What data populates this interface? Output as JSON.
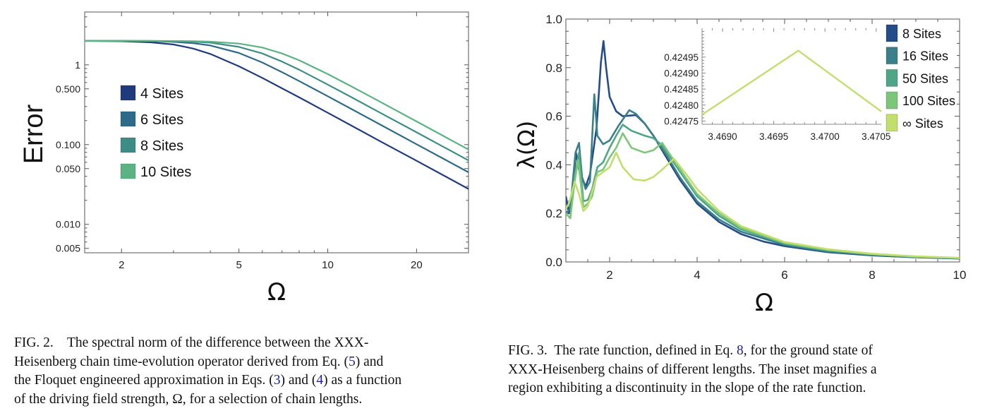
{
  "figures": [
    {
      "caption_lines": [
        [
          "FIG. 2.    The spectral norm of the difference between the XXX-"
        ],
        [
          "Heisenberg chain time-evolution operator derived from Eq. (",
          {
            "ref": "5"
          },
          ") and"
        ],
        [
          "the Floquet engineered approximation in Eqs. (",
          {
            "ref": "3"
          },
          ") and (",
          {
            "ref": "4"
          },
          ") as a function"
        ],
        [
          "of the driving field strength, Ω, for a selection of chain lengths."
        ]
      ]
    },
    {
      "caption_lines": [
        [
          "FIG. 3.  The rate function, defined in Eq. ",
          {
            "ref": "8"
          },
          ", for the ground state of"
        ],
        [
          "XXX-Heisenberg chains of different lengths. The inset magnifies a"
        ],
        [
          "region exhibiting a discontinuity in the slope of the rate function."
        ]
      ]
    }
  ],
  "chart_data": [
    {
      "type": "line",
      "xlabel": "Ω",
      "ylabel": "Error",
      "xscale": "log",
      "yscale": "log",
      "xlim": [
        1.5,
        30
      ],
      "ylim": [
        0.0044,
        4.6
      ],
      "xticks": [
        {
          "v": 2,
          "label": "2"
        },
        {
          "v": 5,
          "label": "5"
        },
        {
          "v": 10,
          "label": "10"
        },
        {
          "v": 20,
          "label": "20"
        }
      ],
      "yticks": [
        {
          "v": 1,
          "label": "1"
        },
        {
          "v": 0.5,
          "label": "0.500"
        },
        {
          "v": 0.1,
          "label": "0.100"
        },
        {
          "v": 0.05,
          "label": "0.050"
        },
        {
          "v": 0.01,
          "label": "0.010"
        },
        {
          "v": 0.005,
          "label": "0.005"
        }
      ],
      "grid": false,
      "legend_position": "left-middle",
      "x": [
        1.5,
        2,
        2.5,
        3,
        3.5,
        4,
        5,
        6,
        7,
        8,
        10,
        12,
        15,
        20,
        25,
        30
      ],
      "series": [
        {
          "name": "4 Sites",
          "color": "#1f3b7e",
          "values": [
            1.996,
            1.979,
            1.92,
            1.8,
            1.6,
            1.37,
            0.96,
            0.686,
            0.508,
            0.391,
            0.251,
            0.174,
            0.111,
            0.0627,
            0.0401,
            0.0278
          ]
        },
        {
          "name": "6 Sites",
          "color": "#2d6a8a",
          "values": [
            2.0,
            1.997,
            1.99,
            1.94,
            1.87,
            1.75,
            1.41,
            1.07,
            0.81,
            0.626,
            0.404,
            0.281,
            0.18,
            0.101,
            0.0648,
            0.045
          ]
        },
        {
          "name": "8 Sites",
          "color": "#3d8d86",
          "values": [
            2.0,
            2.0,
            1.995,
            1.98,
            1.95,
            1.9,
            1.68,
            1.39,
            1.1,
            0.87,
            0.566,
            0.395,
            0.253,
            0.1425,
            0.0912,
            0.0633
          ]
        },
        {
          "name": "10 Sites",
          "color": "#5bb283",
          "values": [
            2.0,
            2.0,
            2.0,
            1.99,
            1.98,
            1.955,
            1.85,
            1.65,
            1.39,
            1.14,
            0.766,
            0.54,
            0.347,
            0.195,
            0.1248,
            0.0867
          ]
        }
      ]
    },
    {
      "type": "line",
      "xlabel": "Ω",
      "ylabel": "λ(Ω)",
      "xlim": [
        1,
        10
      ],
      "ylim": [
        0,
        1
      ],
      "xticks": [
        {
          "v": 2,
          "label": "2"
        },
        {
          "v": 4,
          "label": "4"
        },
        {
          "v": 6,
          "label": "6"
        },
        {
          "v": 8,
          "label": "8"
        },
        {
          "v": 10,
          "label": "10"
        }
      ],
      "yticks": [
        {
          "v": 0,
          "label": "0.0"
        },
        {
          "v": 0.2,
          "label": "0.2"
        },
        {
          "v": 0.4,
          "label": "0.4"
        },
        {
          "v": 0.6,
          "label": "0.6"
        },
        {
          "v": 0.8,
          "label": "0.8"
        },
        {
          "v": 1.0,
          "label": "1.0"
        }
      ],
      "grid": false,
      "legend_position": "top-right",
      "series": [
        {
          "name": "8 Sites",
          "color": "#234c88",
          "points": [
            [
              1,
              0.27
            ],
            [
              1.07,
              0.2
            ],
            [
              1.15,
              0.3
            ],
            [
              1.23,
              0.45
            ],
            [
              1.3,
              0.38
            ],
            [
              1.45,
              0.31
            ],
            [
              1.55,
              0.36
            ],
            [
              1.7,
              0.55
            ],
            [
              1.8,
              0.82
            ],
            [
              1.86,
              0.91
            ],
            [
              1.92,
              0.8
            ],
            [
              2.0,
              0.68
            ],
            [
              2.15,
              0.62
            ],
            [
              2.3,
              0.6
            ],
            [
              2.6,
              0.605
            ],
            [
              2.8,
              0.57
            ],
            [
              3.0,
              0.52
            ],
            [
              3.3,
              0.43
            ],
            [
              3.6,
              0.34
            ],
            [
              4.0,
              0.24
            ],
            [
              4.5,
              0.165
            ],
            [
              5,
              0.115
            ],
            [
              5.5,
              0.085
            ],
            [
              6,
              0.065
            ],
            [
              7,
              0.04
            ],
            [
              8,
              0.027
            ],
            [
              9,
              0.019
            ],
            [
              10,
              0.014
            ]
          ]
        },
        {
          "name": "16 Sites",
          "color": "#3a8089",
          "points": [
            [
              1,
              0.2
            ],
            [
              1.1,
              0.22
            ],
            [
              1.22,
              0.45
            ],
            [
              1.3,
              0.49
            ],
            [
              1.37,
              0.35
            ],
            [
              1.45,
              0.3
            ],
            [
              1.55,
              0.33
            ],
            [
              1.65,
              0.69
            ],
            [
              1.72,
              0.52
            ],
            [
              1.85,
              0.485
            ],
            [
              2.0,
              0.5
            ],
            [
              2.2,
              0.56
            ],
            [
              2.45,
              0.625
            ],
            [
              2.6,
              0.61
            ],
            [
              2.8,
              0.57
            ],
            [
              3.0,
              0.52
            ],
            [
              3.3,
              0.44
            ],
            [
              3.6,
              0.35
            ],
            [
              4,
              0.25
            ],
            [
              4.5,
              0.175
            ],
            [
              5,
              0.125
            ],
            [
              6,
              0.07
            ],
            [
              7,
              0.043
            ],
            [
              8,
              0.029
            ],
            [
              9,
              0.02
            ],
            [
              10,
              0.015
            ]
          ]
        },
        {
          "name": "50 Sites",
          "color": "#4ea686",
          "points": [
            [
              1,
              0.2
            ],
            [
              1.1,
              0.18
            ],
            [
              1.2,
              0.35
            ],
            [
              1.3,
              0.45
            ],
            [
              1.4,
              0.25
            ],
            [
              1.5,
              0.255
            ],
            [
              1.6,
              0.3
            ],
            [
              1.72,
              0.39
            ],
            [
              1.85,
              0.41
            ],
            [
              2.0,
              0.47
            ],
            [
              2.15,
              0.52
            ],
            [
              2.3,
              0.565
            ],
            [
              2.5,
              0.54
            ],
            [
              2.8,
              0.52
            ],
            [
              3.0,
              0.51
            ],
            [
              3.2,
              0.48
            ],
            [
              3.5,
              0.4
            ],
            [
              4,
              0.27
            ],
            [
              4.5,
              0.19
            ],
            [
              5,
              0.135
            ],
            [
              6,
              0.075
            ],
            [
              7,
              0.047
            ],
            [
              8,
              0.031
            ],
            [
              9,
              0.021
            ],
            [
              10,
              0.016
            ]
          ]
        },
        {
          "name": "100 Sites",
          "color": "#7cc67a",
          "points": [
            [
              1,
              0.2
            ],
            [
              1.1,
              0.18
            ],
            [
              1.2,
              0.33
            ],
            [
              1.28,
              0.42
            ],
            [
              1.4,
              0.225
            ],
            [
              1.5,
              0.24
            ],
            [
              1.6,
              0.27
            ],
            [
              1.72,
              0.37
            ],
            [
              1.85,
              0.38
            ],
            [
              2.0,
              0.43
            ],
            [
              2.15,
              0.47
            ],
            [
              2.3,
              0.53
            ],
            [
              2.5,
              0.47
            ],
            [
              2.8,
              0.45
            ],
            [
              3.0,
              0.46
            ],
            [
              3.2,
              0.49
            ],
            [
              3.5,
              0.41
            ],
            [
              4,
              0.28
            ],
            [
              4.5,
              0.2
            ],
            [
              5,
              0.14
            ],
            [
              6,
              0.078
            ],
            [
              7,
              0.049
            ],
            [
              8,
              0.032
            ],
            [
              9,
              0.022
            ],
            [
              10,
              0.016
            ]
          ]
        },
        {
          "name": "∞ Sites",
          "color": "#c2df6e",
          "points": [
            [
              1,
              0.22
            ],
            [
              1.07,
              0.24
            ],
            [
              1.2,
              0.33
            ],
            [
              1.3,
              0.28
            ],
            [
              1.4,
              0.21
            ],
            [
              1.5,
              0.23
            ],
            [
              1.7,
              0.35
            ],
            [
              1.85,
              0.37
            ],
            [
              2.0,
              0.39
            ],
            [
              2.15,
              0.45
            ],
            [
              2.3,
              0.39
            ],
            [
              2.55,
              0.34
            ],
            [
              2.8,
              0.335
            ],
            [
              3.0,
              0.35
            ],
            [
              3.2,
              0.38
            ],
            [
              3.47,
              0.425
            ],
            [
              3.8,
              0.35
            ],
            [
              4,
              0.3
            ],
            [
              4.5,
              0.21
            ],
            [
              5,
              0.148
            ],
            [
              6,
              0.082
            ],
            [
              7,
              0.052
            ],
            [
              8,
              0.034
            ],
            [
              9,
              0.023
            ],
            [
              10,
              0.017
            ]
          ]
        }
      ],
      "inset": {
        "type": "line",
        "xlim": [
          3.4688,
          3.47055
        ],
        "ylim": [
          0.42474,
          0.42504
        ],
        "xticks": [
          {
            "v": 3.469,
            "label": "3.4690"
          },
          {
            "v": 3.4695,
            "label": "3.4695"
          },
          {
            "v": 3.47,
            "label": "3.4700"
          },
          {
            "v": 3.4705,
            "label": "3.4705"
          }
        ],
        "yticks": [
          {
            "v": 0.42475,
            "label": "0.42475"
          },
          {
            "v": 0.4248,
            "label": "0.42480"
          },
          {
            "v": 0.42485,
            "label": "0.42485"
          },
          {
            "v": 0.4249,
            "label": "0.42490"
          },
          {
            "v": 0.42495,
            "label": "0.42495"
          }
        ],
        "series": [
          {
            "name": "∞ Sites",
            "color": "#c2df6e",
            "points": [
              [
                3.4688,
                0.42477
              ],
              [
                3.46974,
                0.42497
              ],
              [
                3.47055,
                0.42478
              ]
            ]
          }
        ]
      }
    }
  ]
}
